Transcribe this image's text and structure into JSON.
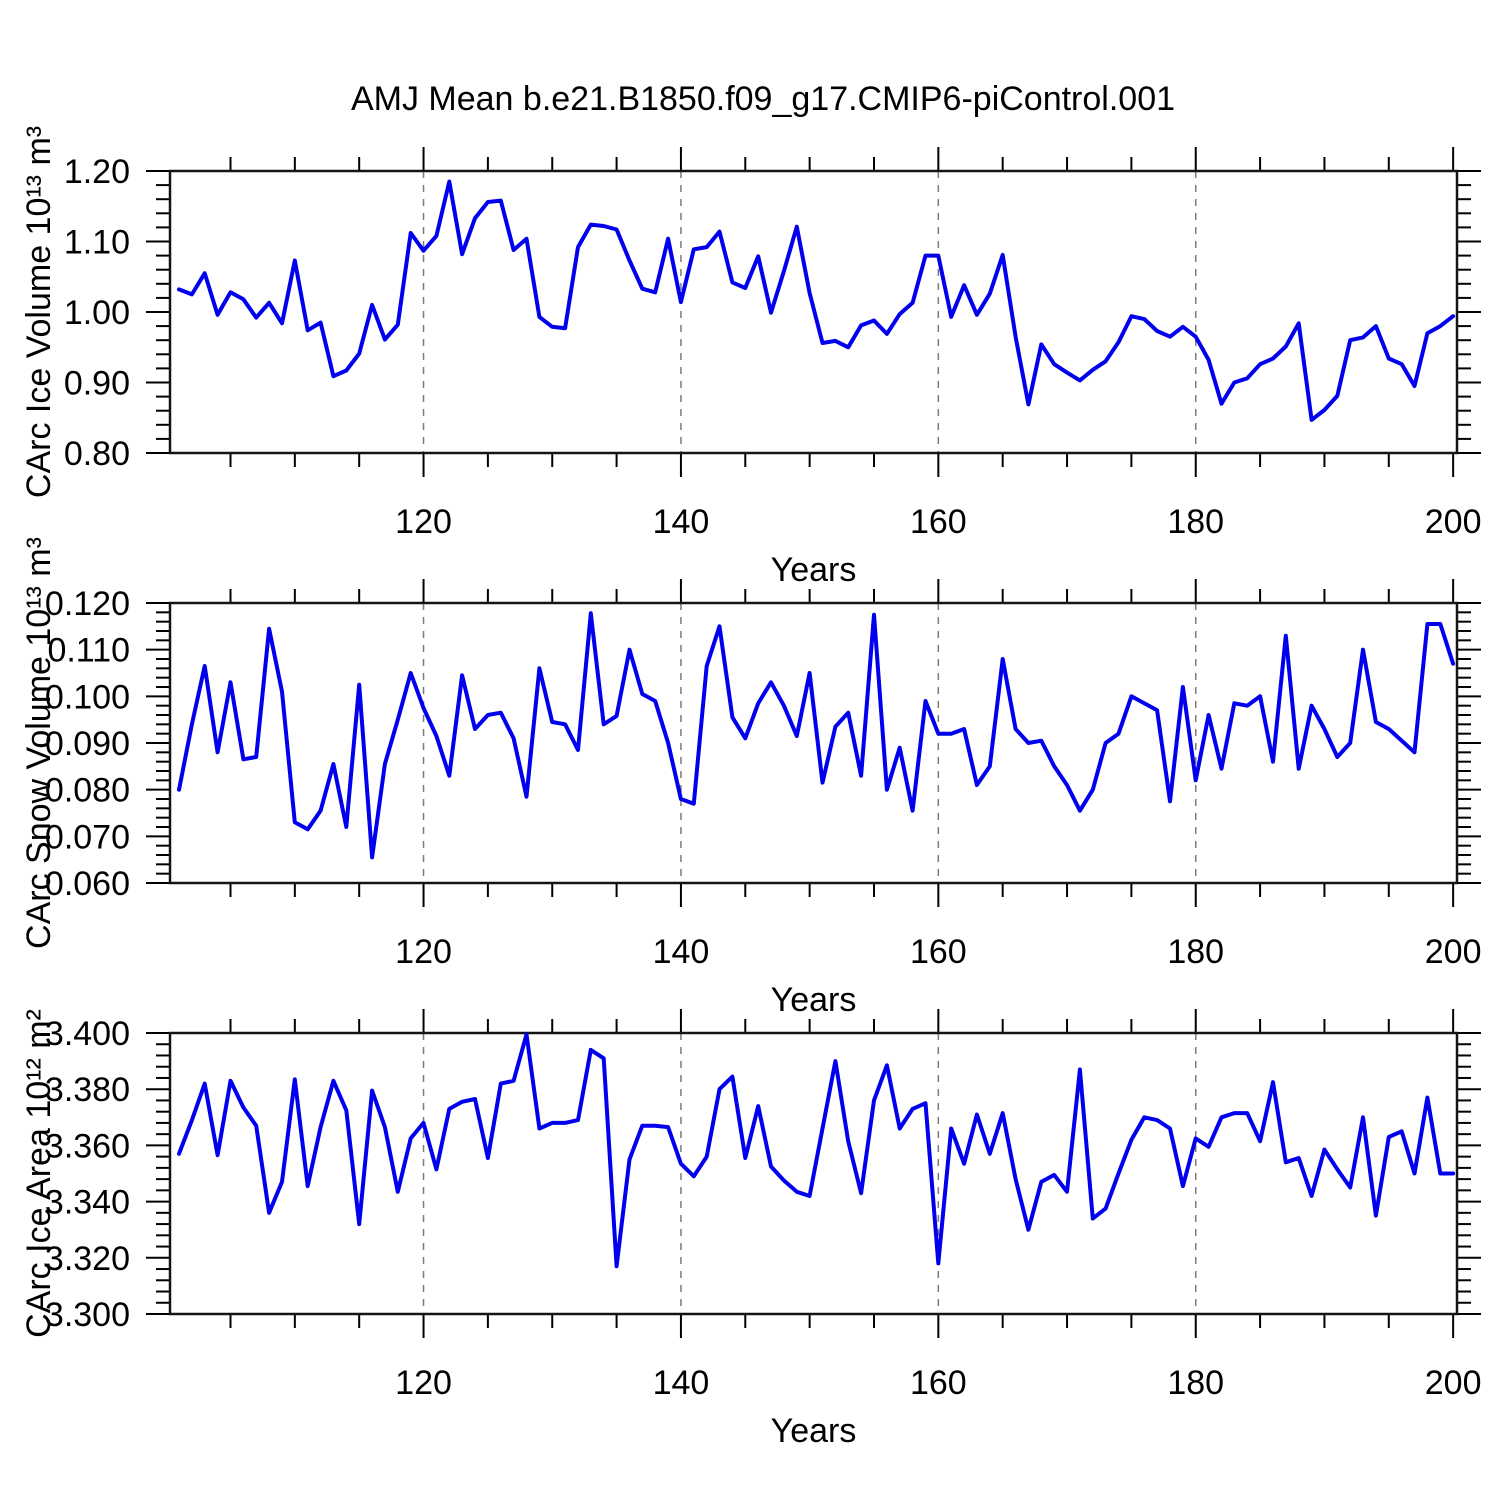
{
  "title": "AMJ Mean b.e21.B1850.f09_g17.CMIP6-piControl.001",
  "chart_data": {
    "type": "line",
    "title": "AMJ Mean b.e21.B1850.f09_g17.CMIP6-piControl.001",
    "legend": "none",
    "grid": "dashed vertical gridlines at major x ticks",
    "x_axis": {
      "label": "Years",
      "start_year": 101,
      "end_year": 200,
      "range": [
        100,
        200
      ],
      "major_ticks": [
        120,
        140,
        160,
        180,
        200
      ],
      "tick_labels": [
        "120",
        "140",
        "160",
        "180",
        "200"
      ],
      "minor_tick_step": 5,
      "gridline_years": [
        120,
        140,
        160,
        180
      ]
    },
    "panels": [
      {
        "name": "ice-volume",
        "ylabel": "CArc Ice Volume 10¹³ m³",
        "ylim": [
          0.8,
          1.2
        ],
        "major_ticks": [
          0.8,
          0.9,
          1.0,
          1.1,
          1.2
        ],
        "tick_labels": [
          "0.80",
          "0.90",
          "1.00",
          "1.10",
          "1.20"
        ],
        "minor_tick_step": 0.02,
        "line_color": "#0000EE",
        "values": [
          1.032,
          1.025,
          1.055,
          0.996,
          1.028,
          1.018,
          0.992,
          1.013,
          0.984,
          1.073,
          0.974,
          0.985,
          0.909,
          0.917,
          0.941,
          1.01,
          0.961,
          0.982,
          1.112,
          1.087,
          1.108,
          1.185,
          1.082,
          1.133,
          1.156,
          1.158,
          1.088,
          1.104,
          0.993,
          0.979,
          0.977,
          1.092,
          1.124,
          1.122,
          1.117,
          1.073,
          1.033,
          1.028,
          1.104,
          1.014,
          1.089,
          1.092,
          1.114,
          1.042,
          1.034,
          1.079,
          0.999,
          1.058,
          1.121,
          1.027,
          0.956,
          0.959,
          0.95,
          0.981,
          0.988,
          0.969,
          0.997,
          1.013,
          1.08,
          1.08,
          0.993,
          1.038,
          0.996,
          1.026,
          1.081,
          0.965,
          0.869,
          0.954,
          0.926,
          0.914,
          0.903,
          0.918,
          0.93,
          0.957,
          0.994,
          0.99,
          0.973,
          0.965,
          0.979,
          0.965,
          0.932,
          0.87,
          0.9,
          0.906,
          0.926,
          0.934,
          0.951,
          0.984,
          0.847,
          0.861,
          0.881,
          0.96,
          0.964,
          0.98,
          0.934,
          0.926,
          0.895,
          0.97,
          0.98,
          0.994
        ]
      },
      {
        "name": "snow-volume",
        "ylabel": "CArc Snow Volume 10¹³ m³",
        "ylim": [
          0.06,
          0.12
        ],
        "major_ticks": [
          0.06,
          0.07,
          0.08,
          0.09,
          0.1,
          0.11,
          0.12
        ],
        "tick_labels": [
          "0.060",
          "0.070",
          "0.080",
          "0.090",
          "0.100",
          "0.110",
          "0.120"
        ],
        "minor_tick_step": 0.002,
        "line_color": "#0000EE",
        "values": [
          0.08,
          0.094,
          0.1065,
          0.088,
          0.103,
          0.0865,
          0.087,
          0.1145,
          0.101,
          0.073,
          0.0715,
          0.0755,
          0.0855,
          0.072,
          0.1025,
          0.0655,
          0.0855,
          0.095,
          0.105,
          0.0975,
          0.0915,
          0.083,
          0.1045,
          0.093,
          0.096,
          0.0965,
          0.091,
          0.0785,
          0.106,
          0.0945,
          0.094,
          0.0885,
          0.1178,
          0.094,
          0.0958,
          0.11,
          0.1005,
          0.099,
          0.09,
          0.078,
          0.077,
          0.1065,
          0.115,
          0.0955,
          0.091,
          0.0985,
          0.103,
          0.098,
          0.0915,
          0.105,
          0.0815,
          0.0935,
          0.0965,
          0.083,
          0.1175,
          0.08,
          0.089,
          0.0755,
          0.099,
          0.092,
          0.092,
          0.093,
          0.081,
          0.085,
          0.108,
          0.093,
          0.09,
          0.0905,
          0.085,
          0.081,
          0.0755,
          0.08,
          0.09,
          0.092,
          0.1,
          0.0985,
          0.097,
          0.0775,
          0.102,
          0.082,
          0.096,
          0.0845,
          0.0985,
          0.098,
          0.1,
          0.086,
          0.113,
          0.0845,
          0.098,
          0.093,
          0.087,
          0.09,
          0.11,
          0.0945,
          0.093,
          0.0905,
          0.088,
          0.1155,
          0.1155,
          0.107
        ]
      },
      {
        "name": "ice-area",
        "ylabel": "CArc Ice Area 10¹² m²",
        "ylim": [
          3.3,
          3.4
        ],
        "major_ticks": [
          3.3,
          3.32,
          3.34,
          3.36,
          3.38,
          3.4
        ],
        "tick_labels": [
          "3.300",
          "3.320",
          "3.340",
          "3.360",
          "3.380",
          "3.400"
        ],
        "minor_tick_step": 0.004,
        "line_color": "#0000EE",
        "values": [
          3.357,
          3.369,
          3.382,
          3.3565,
          3.383,
          3.3735,
          3.367,
          3.336,
          3.347,
          3.3835,
          3.3455,
          3.3665,
          3.383,
          3.3725,
          3.332,
          3.3795,
          3.3665,
          3.3435,
          3.3625,
          3.368,
          3.3515,
          3.373,
          3.3755,
          3.3765,
          3.3555,
          3.382,
          3.383,
          3.3995,
          3.366,
          3.368,
          3.368,
          3.369,
          3.394,
          3.391,
          3.317,
          3.355,
          3.367,
          3.367,
          3.3665,
          3.3535,
          3.349,
          3.356,
          3.38,
          3.3845,
          3.3555,
          3.374,
          3.3525,
          3.3475,
          3.3435,
          3.342,
          3.366,
          3.39,
          3.3615,
          3.343,
          3.376,
          3.3885,
          3.366,
          3.373,
          3.375,
          3.318,
          3.366,
          3.3535,
          3.371,
          3.357,
          3.3715,
          3.348,
          3.33,
          3.347,
          3.3495,
          3.3435,
          3.387,
          3.334,
          3.3375,
          3.35,
          3.362,
          3.37,
          3.369,
          3.366,
          3.3455,
          3.3625,
          3.3595,
          3.37,
          3.3715,
          3.3715,
          3.3615,
          3.3825,
          3.354,
          3.3555,
          3.342,
          3.3585,
          3.3515,
          3.345,
          3.37,
          3.335,
          3.363,
          3.365,
          3.35,
          3.377,
          3.35,
          3.35
        ]
      }
    ]
  }
}
